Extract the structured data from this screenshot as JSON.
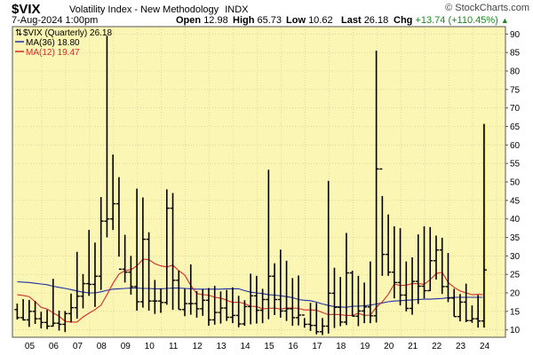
{
  "header": {
    "symbol": "$VIX",
    "name": "Volatility Index - New Methodology",
    "exchange": "INDX",
    "watermark": "© StockCharts.com",
    "date": "7-Aug-2024 1:00pm",
    "open_label": "Open",
    "open": "12.98",
    "high_label": "High",
    "high": "65.73",
    "low_label": "Low",
    "low": "10.62",
    "last_label": "Last",
    "last": "26.18",
    "chg_label": "Chg",
    "chg": "+13.74 (+110.45%)",
    "chg_arrow": "▲"
  },
  "legend": {
    "main": "$VIX (Quarterly) 26.18",
    "ma36": "MA(36) 18.80",
    "ma12": "MA(12) 19.47"
  },
  "colors": {
    "background": "#fbf6b4",
    "bars": "#000000",
    "ma36": "#1f2fa8",
    "ma12": "#d42a2a",
    "current_bar": "#f0dc3c",
    "grid": "#c9c49a",
    "chg": "#1a8a1a"
  },
  "chart_data": {
    "type": "ohlc",
    "title": "$VIX (Quarterly)",
    "x_tick_labels": [
      "05",
      "06",
      "07",
      "08",
      "09",
      "10",
      "11",
      "12",
      "13",
      "14",
      "15",
      "16",
      "17",
      "18",
      "19",
      "20",
      "21",
      "22",
      "23",
      "24"
    ],
    "y_ticks": [
      10,
      15,
      20,
      25,
      30,
      35,
      40,
      45,
      50,
      55,
      60,
      65,
      70,
      75,
      80,
      85,
      90
    ],
    "ylim": [
      8,
      92
    ],
    "grid": true,
    "log_scale": false,
    "x_start_year": 2004,
    "bars": [
      [
        15.5,
        17.1,
        12.8,
        13.3
      ],
      [
        13.3,
        18.3,
        12.5,
        12.7
      ],
      [
        12.7,
        18.1,
        10.8,
        15.0
      ],
      [
        15.0,
        17.8,
        11.6,
        13.0
      ],
      [
        13.0,
        14.9,
        10.4,
        12.0
      ],
      [
        12.0,
        15.4,
        10.2,
        11.0
      ],
      [
        11.0,
        23.8,
        10.9,
        11.8
      ],
      [
        11.8,
        15.2,
        9.8,
        11.5
      ],
      [
        11.5,
        15.1,
        9.4,
        14.4
      ],
      [
        14.4,
        19.8,
        12.0,
        16.0
      ],
      [
        16.0,
        31.1,
        13.0,
        19.1
      ],
      [
        19.1,
        25.1,
        15.8,
        22.5
      ],
      [
        22.5,
        37.0,
        19.2,
        22.3
      ],
      [
        22.3,
        33.6,
        16.2,
        24.5
      ],
      [
        24.5,
        45.9,
        20.8,
        39.4
      ],
      [
        39.4,
        89.5,
        35.0,
        40.0
      ],
      [
        40.0,
        57.4,
        37.0,
        44.1
      ],
      [
        44.1,
        51.3,
        29.8,
        26.4
      ],
      [
        26.4,
        35.7,
        22.8,
        25.6
      ],
      [
        25.6,
        30.0,
        19.5,
        21.7
      ],
      [
        21.7,
        48.2,
        15.2,
        17.6
      ],
      [
        17.6,
        45.8,
        16.0,
        34.5
      ],
      [
        34.5,
        36.4,
        15.2,
        17.8
      ],
      [
        17.8,
        23.5,
        14.3,
        17.8
      ],
      [
        17.8,
        21.2,
        14.6,
        17.4
      ],
      [
        17.4,
        48.0,
        16.8,
        42.9
      ],
      [
        42.9,
        47.0,
        15.4,
        23.4
      ],
      [
        23.4,
        26.0,
        15.5,
        15.5
      ],
      [
        15.5,
        21.1,
        13.7,
        17.1
      ],
      [
        17.1,
        27.7,
        14.1,
        17.1
      ],
      [
        17.1,
        20.5,
        13.3,
        15.7
      ],
      [
        15.7,
        21.0,
        13.8,
        18.0
      ],
      [
        18.0,
        21.3,
        11.1,
        12.7
      ],
      [
        12.7,
        21.9,
        11.4,
        14.7
      ],
      [
        14.7,
        20.4,
        11.7,
        15.9
      ],
      [
        15.9,
        20.8,
        12.4,
        13.4
      ],
      [
        13.4,
        21.5,
        11.8,
        13.9
      ],
      [
        13.9,
        19.2,
        10.7,
        11.6
      ],
      [
        11.6,
        18.0,
        11.1,
        16.3
      ],
      [
        16.3,
        25.2,
        11.5,
        19.2
      ],
      [
        19.2,
        24.6,
        11.7,
        15.3
      ],
      [
        15.3,
        21.1,
        11.8,
        18.2
      ],
      [
        18.2,
        53.3,
        12.9,
        24.5
      ],
      [
        24.5,
        28.0,
        14.0,
        18.2
      ],
      [
        18.2,
        31.7,
        13.3,
        15.1
      ],
      [
        15.1,
        28.7,
        12.4,
        15.7
      ],
      [
        15.7,
        24.0,
        11.1,
        13.3
      ],
      [
        13.3,
        24.7,
        11.2,
        14.0
      ],
      [
        14.0,
        13.2,
        10.6,
        11.5
      ],
      [
        11.5,
        17.3,
        9.7,
        11.2
      ],
      [
        11.2,
        17.3,
        8.8,
        9.5
      ],
      [
        9.5,
        13.2,
        8.6,
        11.0
      ],
      [
        11.0,
        50.3,
        9.0,
        19.9
      ],
      [
        19.9,
        26.8,
        10.5,
        16.1
      ],
      [
        16.1,
        24.3,
        11.0,
        12.1
      ],
      [
        12.1,
        36.2,
        11.3,
        25.4
      ],
      [
        25.4,
        26.0,
        13.7,
        13.7
      ],
      [
        13.7,
        24.6,
        11.0,
        15.1
      ],
      [
        15.1,
        22.8,
        11.8,
        16.2
      ],
      [
        16.2,
        28.5,
        11.8,
        13.8
      ],
      [
        13.8,
        85.5,
        12.0,
        53.5
      ],
      [
        53.5,
        46.2,
        24.6,
        30.4
      ],
      [
        30.4,
        41.2,
        24.6,
        25.6
      ],
      [
        25.6,
        38.0,
        18.5,
        22.8
      ],
      [
        22.8,
        37.5,
        16.6,
        19.4
      ],
      [
        19.4,
        28.5,
        15.0,
        15.8
      ],
      [
        15.8,
        29.6,
        14.1,
        23.1
      ],
      [
        23.1,
        35.8,
        17.0,
        21.8
      ],
      [
        21.8,
        38.0,
        18.5,
        20.6
      ],
      [
        20.6,
        37.8,
        20.5,
        28.7
      ],
      [
        28.7,
        35.5,
        23.6,
        31.6
      ],
      [
        31.6,
        34.9,
        19.7,
        21.7
      ],
      [
        21.7,
        30.8,
        17.5,
        18.6
      ],
      [
        18.6,
        21.1,
        13.6,
        13.6
      ],
      [
        13.6,
        19.7,
        12.3,
        17.5
      ],
      [
        17.5,
        22.5,
        12.1,
        12.5
      ],
      [
        12.5,
        16.6,
        11.9,
        13.0
      ],
      [
        13.0,
        19.4,
        10.6,
        12.4
      ],
      [
        12.4,
        65.7,
        10.6,
        26.2
      ]
    ],
    "ma36": [
      23.0,
      22.9,
      22.8,
      22.6,
      22.4,
      22.2,
      21.8,
      21.5,
      21.2,
      20.9,
      20.5,
      20.2,
      20.0,
      20.0,
      20.3,
      20.7,
      21.0,
      21.1,
      21.2,
      21.3,
      21.3,
      21.2,
      21.2,
      21.1,
      21.1,
      21.2,
      21.3,
      21.3,
      21.2,
      21.1,
      21.0,
      21.0,
      21.0,
      21.0,
      21.0,
      21.1,
      21.1,
      21.1,
      20.6,
      20.2,
      20.0,
      19.8,
      19.5,
      19.4,
      19.2,
      19.0,
      18.7,
      18.2,
      18.0,
      17.9,
      17.5,
      17.0,
      16.6,
      16.3,
      16.2,
      16.1,
      16.4,
      16.4,
      16.5,
      16.7,
      17.0,
      17.3,
      17.6,
      17.8,
      17.9,
      18.0,
      18.1,
      18.2,
      18.3,
      18.3,
      18.4,
      18.5,
      18.7,
      18.8,
      18.8,
      18.8,
      18.8,
      18.8,
      18.8
    ],
    "ma12": [
      19.5,
      19.3,
      19.0,
      17.6,
      16.1,
      15.6,
      14.6,
      13.7,
      12.3,
      12.1,
      12.1,
      13.5,
      14.5,
      15.5,
      16.7,
      19.5,
      22.6,
      25.1,
      26.0,
      26.3,
      27.3,
      29.1,
      29.0,
      27.9,
      27.3,
      27.0,
      27.5,
      26.0,
      24.8,
      22.0,
      19.8,
      19.5,
      19.4,
      18.8,
      18.6,
      18.0,
      17.4,
      17.5,
      17.1,
      16.4,
      16.3,
      15.7,
      15.8,
      15.9,
      15.6,
      15.9,
      15.9,
      15.8,
      15.4,
      15.4,
      15.3,
      14.7,
      14.1,
      14.2,
      14.1,
      13.9,
      13.9,
      14.5,
      13.9,
      14.0,
      16.1,
      17.6,
      19.6,
      22.4,
      22.0,
      22.1,
      22.5,
      22.5,
      22.3,
      23.6,
      25.2,
      25.6,
      22.8,
      21.5,
      20.5,
      20.0,
      19.5,
      19.6,
      19.5
    ]
  }
}
